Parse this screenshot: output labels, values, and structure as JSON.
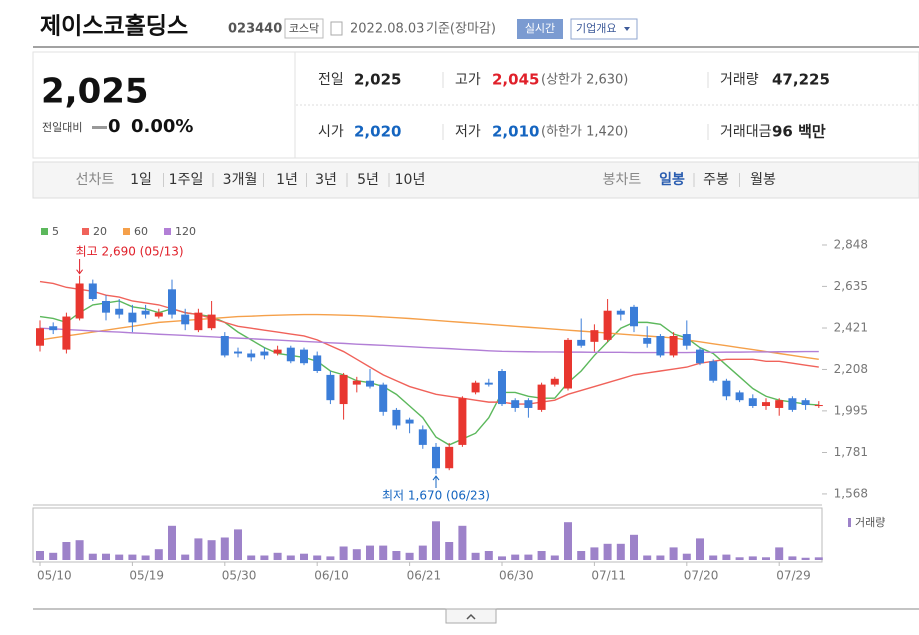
{
  "header": {
    "title": "제이스코홀딩스",
    "code": "023440",
    "market": "코스닥",
    "date": "2022.08.03",
    "basis": "기준(장마감)",
    "realtime": "실시간",
    "company_info": "기업개요"
  },
  "summary": {
    "price": "2,025",
    "change_label": "전일대비",
    "change": "0",
    "change_rate": "0.00%",
    "items": [
      {
        "label": "전일",
        "value": "2,025",
        "color": "#222222"
      },
      {
        "label": "고가",
        "value": "2,045",
        "sub": "(상한가 2,630)",
        "color": "#e0202a"
      },
      {
        "label": "거래량",
        "value": "47,225",
        "color": "#222222"
      },
      {
        "label": "시가",
        "value": "2,020",
        "color": "#1565c0"
      },
      {
        "label": "저가",
        "value": "2,010",
        "sub": "(하한가 1,420)",
        "color": "#1565c0"
      },
      {
        "label": "거래대금",
        "value": "96 백만",
        "color": "#222222"
      }
    ]
  },
  "tabs": {
    "line_label": "선차트",
    "line": [
      "1일",
      "1주일",
      "3개월",
      "1년",
      "3년",
      "5년",
      "10년"
    ],
    "candle_label": "봉차트",
    "candle": [
      "일봉",
      "주봉",
      "월봉"
    ],
    "candle_active": 0
  },
  "chart_data": {
    "type": "candlestick",
    "categories": [
      "05/10",
      null,
      null,
      null,
      null,
      null,
      null,
      "05/19",
      null,
      null,
      null,
      null,
      null,
      null,
      "05/30",
      null,
      null,
      null,
      null,
      null,
      null,
      "06/10",
      null,
      null,
      null,
      null,
      null,
      null,
      "06/21",
      null,
      null,
      null,
      null,
      null,
      null,
      "06/30",
      null,
      null,
      null,
      null,
      null,
      null,
      "07/11",
      null,
      null,
      null,
      null,
      null,
      null,
      "07/20",
      null,
      null,
      null,
      null,
      null,
      null,
      "07/29",
      null,
      null,
      null
    ],
    "open": [
      2330,
      2430,
      2310,
      2470,
      2650,
      2560,
      2520,
      2500,
      2510,
      2480,
      2620,
      2490,
      2410,
      2420,
      2380,
      2300,
      2290,
      2300,
      2290,
      2320,
      2310,
      2280,
      2180,
      2030,
      2130,
      2150,
      2130,
      2000,
      1950,
      1900,
      1810,
      1700,
      1820,
      2090,
      2140,
      2200,
      2050,
      2050,
      2000,
      2130,
      2110,
      2360,
      2350,
      2360,
      2510,
      2530,
      2370,
      2380,
      2280,
      2390,
      2310,
      2250,
      2150,
      2090,
      2060,
      2020,
      2010,
      2060,
      2050,
      2020
    ],
    "high": [
      2460,
      2450,
      2500,
      2690,
      2670,
      2590,
      2570,
      2540,
      2540,
      2520,
      2670,
      2520,
      2520,
      2560,
      2400,
      2320,
      2310,
      2320,
      2330,
      2330,
      2320,
      2300,
      2200,
      2190,
      2170,
      2210,
      2140,
      2010,
      1960,
      1920,
      1830,
      1830,
      2070,
      2150,
      2160,
      2210,
      2060,
      2060,
      2140,
      2170,
      2370,
      2470,
      2440,
      2570,
      2520,
      2540,
      2430,
      2390,
      2400,
      2460,
      2320,
      2260,
      2160,
      2100,
      2080,
      2060,
      2060,
      2070,
      2060,
      2045
    ],
    "low": [
      2300,
      2390,
      2290,
      2460,
      2560,
      2460,
      2470,
      2400,
      2470,
      2470,
      2470,
      2410,
      2400,
      2410,
      2270,
      2270,
      2250,
      2260,
      2280,
      2240,
      2230,
      2190,
      2030,
      1950,
      2090,
      2110,
      1970,
      1900,
      1880,
      1800,
      1670,
      1690,
      1810,
      2080,
      2120,
      2020,
      1990,
      1960,
      1990,
      2120,
      2100,
      2320,
      2300,
      2350,
      2460,
      2400,
      2320,
      2270,
      2270,
      2310,
      2230,
      2140,
      2050,
      2040,
      2010,
      2000,
      1970,
      1990,
      2000,
      2010
    ],
    "close": [
      2420,
      2410,
      2480,
      2650,
      2570,
      2500,
      2490,
      2450,
      2490,
      2500,
      2490,
      2440,
      2500,
      2490,
      2280,
      2290,
      2270,
      2280,
      2310,
      2250,
      2240,
      2200,
      2050,
      2180,
      2150,
      2120,
      1990,
      1920,
      1930,
      1820,
      1700,
      1810,
      2060,
      2140,
      2130,
      2030,
      2010,
      2010,
      2130,
      2160,
      2360,
      2330,
      2410,
      2510,
      2490,
      2430,
      2340,
      2280,
      2380,
      2330,
      2240,
      2150,
      2070,
      2050,
      2020,
      2040,
      2050,
      2000,
      2025,
      2025
    ],
    "up_color": "#e8362f",
    "down_color": "#3b7dd8",
    "ma": [
      {
        "name": "5",
        "color": "#5cb85c",
        "values": [
          2480,
          2470,
          2450,
          2500,
          2540,
          2550,
          2560,
          2530,
          2520,
          2500,
          2520,
          2500,
          2490,
          2480,
          2450,
          2400,
          2360,
          2320,
          2290,
          2280,
          2270,
          2250,
          2200,
          2180,
          2150,
          2140,
          2120,
          2080,
          2020,
          1960,
          1860,
          1820,
          1850,
          1880,
          1960,
          2090,
          2090,
          2070,
          2060,
          2060,
          2140,
          2200,
          2280,
          2350,
          2420,
          2450,
          2450,
          2440,
          2390,
          2370,
          2320,
          2290,
          2230,
          2170,
          2110,
          2070,
          2050,
          2040,
          2030,
          2025
        ]
      },
      {
        "name": "20",
        "color": "#f0625a",
        "values": [
          2660,
          2650,
          2630,
          2620,
          2610,
          2590,
          2580,
          2560,
          2550,
          2540,
          2520,
          2500,
          2490,
          2470,
          2450,
          2430,
          2420,
          2410,
          2400,
          2390,
          2380,
          2360,
          2330,
          2300,
          2260,
          2220,
          2180,
          2150,
          2120,
          2100,
          2080,
          2070,
          2060,
          2050,
          2040,
          2040,
          2030,
          2030,
          2040,
          2050,
          2080,
          2100,
          2120,
          2140,
          2160,
          2180,
          2190,
          2200,
          2210,
          2220,
          2240,
          2250,
          2260,
          2260,
          2260,
          2250,
          2250,
          2240,
          2230,
          2220
        ]
      },
      {
        "name": "60",
        "color": "#f5a04a",
        "values": [
          2360,
          2370,
          2380,
          2390,
          2400,
          2410,
          2420,
          2430,
          2440,
          2450,
          2455,
          2460,
          2465,
          2470,
          2475,
          2480,
          2482,
          2485,
          2487,
          2489,
          2490,
          2490,
          2489,
          2487,
          2485,
          2482,
          2478,
          2474,
          2470,
          2465,
          2460,
          2455,
          2450,
          2445,
          2440,
          2435,
          2430,
          2425,
          2420,
          2415,
          2410,
          2405,
          2400,
          2395,
          2390,
          2385,
          2380,
          2375,
          2370,
          2360,
          2350,
          2340,
          2330,
          2320,
          2310,
          2300,
          2290,
          2280,
          2270,
          2260
        ]
      },
      {
        "name": "120",
        "color": "#b27fd6",
        "values": [
          2420,
          2417,
          2413,
          2410,
          2406,
          2403,
          2400,
          2396,
          2393,
          2389,
          2386,
          2383,
          2379,
          2376,
          2372,
          2369,
          2366,
          2362,
          2359,
          2355,
          2352,
          2349,
          2345,
          2342,
          2338,
          2335,
          2332,
          2328,
          2325,
          2321,
          2318,
          2315,
          2311,
          2308,
          2304,
          2301,
          2300,
          2299,
          2298,
          2298,
          2297,
          2297,
          2296,
          2296,
          2296,
          2295,
          2295,
          2295,
          2295,
          2295,
          2296,
          2296,
          2297,
          2297,
          2298,
          2298,
          2299,
          2299,
          2300,
          2300
        ]
      }
    ],
    "volume": {
      "name": "거래량",
      "color": "#9d82c9",
      "ylim": [
        0,
        800000
      ],
      "values": [
        160000,
        128000,
        320000,
        352000,
        112000,
        112000,
        96000,
        96000,
        80000,
        192000,
        608000,
        96000,
        384000,
        352000,
        400000,
        544000,
        80000,
        80000,
        128000,
        80000,
        112000,
        80000,
        64000,
        240000,
        192000,
        256000,
        256000,
        160000,
        128000,
        256000,
        688000,
        320000,
        608000,
        128000,
        160000,
        64000,
        96000,
        96000,
        160000,
        80000,
        672000,
        160000,
        224000,
        288000,
        288000,
        448000,
        80000,
        80000,
        224000,
        112000,
        384000,
        80000,
        96000,
        48000,
        64000,
        48000,
        224000,
        64000,
        40000,
        47225
      ]
    },
    "ylim": [
      1511,
      2925
    ],
    "yticks": [
      {
        "value": 2848,
        "label": "2,848"
      },
      {
        "value": 2635,
        "label": "2,635"
      },
      {
        "value": 2421,
        "label": "2,421"
      },
      {
        "value": 2208,
        "label": "2,208"
      },
      {
        "value": 1995,
        "label": "1,995"
      },
      {
        "value": 1781,
        "label": "1,781"
      },
      {
        "value": 1568,
        "label": "1,568"
      }
    ],
    "max_label": "최고 2,690 (05/13)",
    "min_label": "최저 1,670 (06/23)"
  }
}
